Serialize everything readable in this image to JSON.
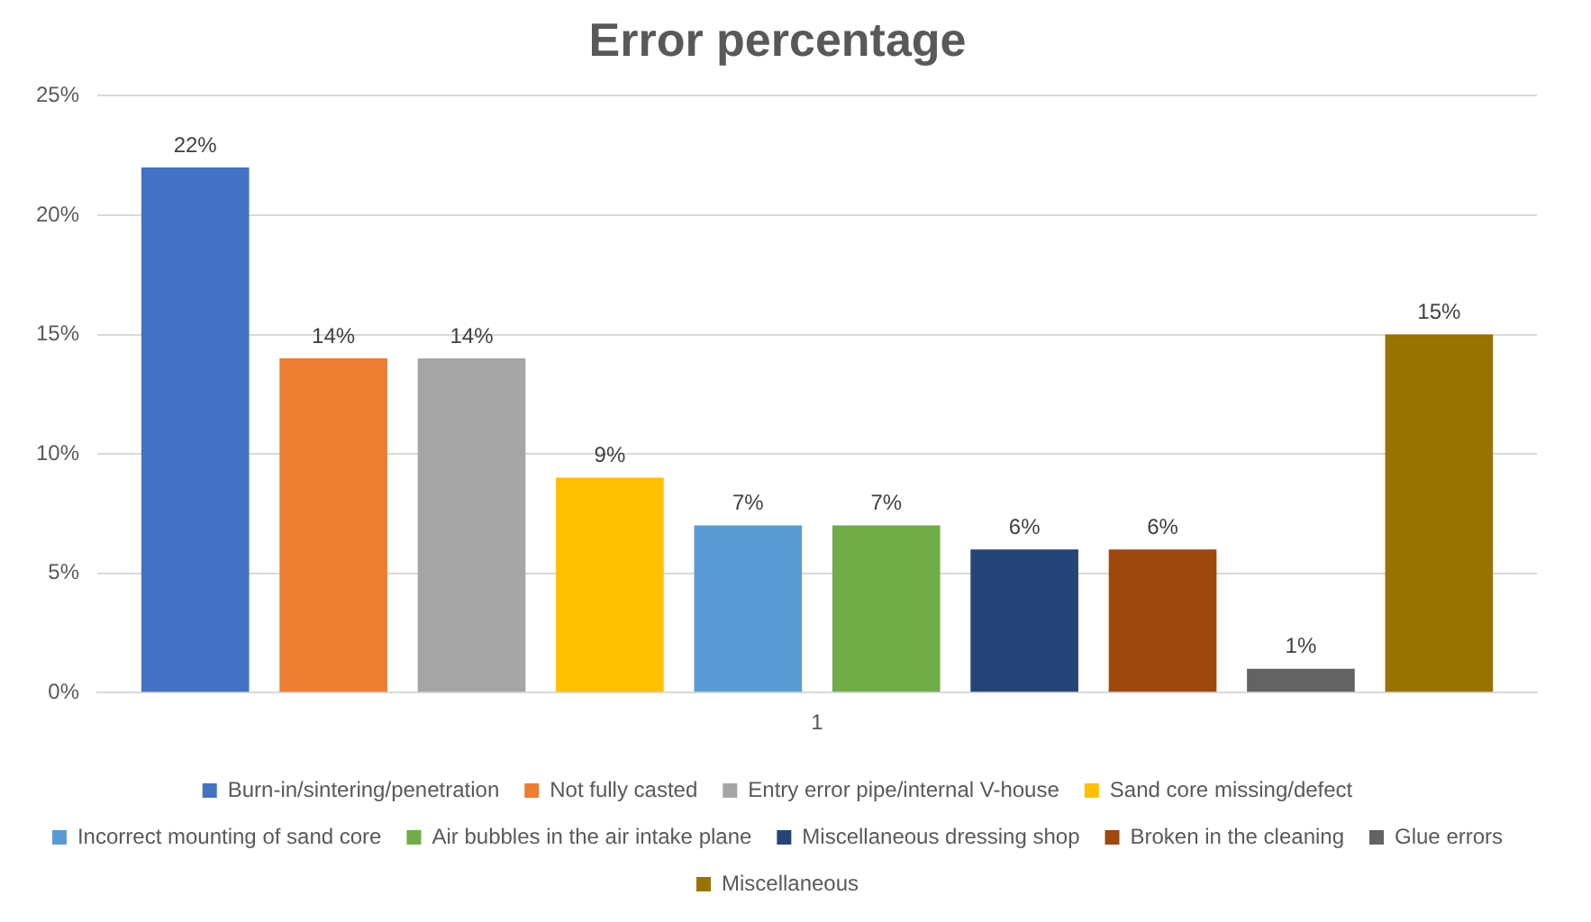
{
  "chart_data": {
    "type": "bar",
    "title": "Error percentage",
    "categories": [
      "1"
    ],
    "series": [
      {
        "name": "Burn-in/sintering/penetration",
        "color": "#4472c4",
        "values": [
          22
        ],
        "value_labels": [
          "22%"
        ]
      },
      {
        "name": "Not fully casted",
        "color": "#ed7d31",
        "values": [
          14
        ],
        "value_labels": [
          "14%"
        ]
      },
      {
        "name": "Entry error pipe/internal V-house",
        "color": "#a5a5a5",
        "values": [
          14
        ],
        "value_labels": [
          "14%"
        ]
      },
      {
        "name": "Sand core missing/defect",
        "color": "#ffc000",
        "values": [
          9
        ],
        "value_labels": [
          "9%"
        ]
      },
      {
        "name": "Incorrect mounting of sand core",
        "color": "#5b9bd5",
        "values": [
          7
        ],
        "value_labels": [
          "7%"
        ]
      },
      {
        "name": "Air bubbles in the air intake plane",
        "color": "#70ad47",
        "values": [
          7
        ],
        "value_labels": [
          "7%"
        ]
      },
      {
        "name": "Miscellaneous dressing shop",
        "color": "#264478",
        "values": [
          6
        ],
        "value_labels": [
          "6%"
        ]
      },
      {
        "name": "Broken in the cleaning",
        "color": "#9e480e",
        "values": [
          6
        ],
        "value_labels": [
          "6%"
        ]
      },
      {
        "name": "Glue errors",
        "color": "#636363",
        "values": [
          1
        ],
        "value_labels": [
          "1%"
        ]
      },
      {
        "name": "Miscellaneous",
        "color": "#997300",
        "values": [
          15
        ],
        "value_labels": [
          "15%"
        ]
      }
    ],
    "ylim": [
      0,
      25
    ],
    "yticks": [
      {
        "value": 0,
        "label": "0%"
      },
      {
        "value": 5,
        "label": "5%"
      },
      {
        "value": 10,
        "label": "10%"
      },
      {
        "value": 15,
        "label": "15%"
      },
      {
        "value": 20,
        "label": "20%"
      },
      {
        "value": 25,
        "label": "25%"
      }
    ],
    "grid": "y",
    "legend": "bottom"
  }
}
